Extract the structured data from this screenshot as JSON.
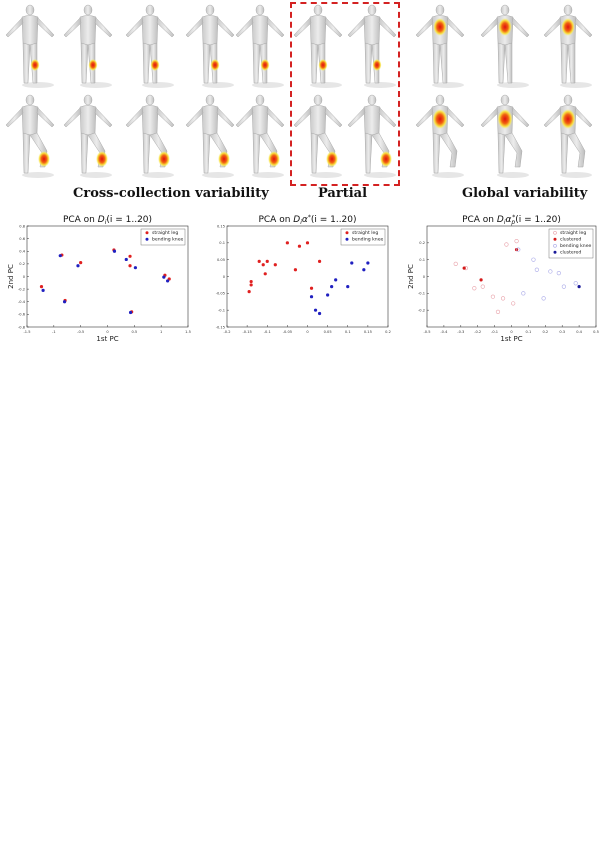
{
  "figure": {
    "group_titles": {
      "cross": "Cross-collection variability",
      "partial": "Partial",
      "global": "Global variability"
    }
  },
  "chart_data": [
    {
      "type": "scatter",
      "title": "PCA on D_i(i = 1..20)",
      "title_parts": {
        "prefix": "PCA on ",
        "math": "D",
        "sub": "i",
        "suffix": "(i = 1..20)"
      },
      "xlabel": "1st PC",
      "ylabel": "2nd PC",
      "xlim": [
        -1.5,
        1.5
      ],
      "ylim": [
        -0.8,
        0.8
      ],
      "xticks": [
        -1.5,
        -1,
        -0.5,
        0,
        0.5,
        1,
        1.5
      ],
      "yticks": [
        -0.8,
        -0.6,
        -0.4,
        -0.2,
        0,
        0.2,
        0.4,
        0.6,
        0.8
      ],
      "xtick_labels": [
        "-1.5",
        "-1",
        "-0.5",
        "0",
        "0.5",
        "1",
        "1.5"
      ],
      "ytick_labels": [
        "-0.8",
        "-0.6",
        "-0.4",
        "-0.2",
        "0",
        "0.2",
        "0.4",
        "0.6",
        "0.8"
      ],
      "legend": "top-right",
      "series": [
        {
          "name": "straight leg",
          "color": "#e02020",
          "marker": "filled",
          "points": [
            [
              -1.23,
              -0.16
            ],
            [
              -0.85,
              0.34
            ],
            [
              -0.79,
              -0.38
            ],
            [
              -0.5,
              0.22
            ],
            [
              0.12,
              0.42
            ],
            [
              0.42,
              0.32
            ],
            [
              0.42,
              0.17
            ],
            [
              0.45,
              -0.56
            ],
            [
              1.07,
              0.02
            ],
            [
              1.15,
              -0.04
            ]
          ]
        },
        {
          "name": "bending knee",
          "color": "#2020c0",
          "marker": "filled",
          "points": [
            [
              -1.2,
              -0.22
            ],
            [
              -0.88,
              0.33
            ],
            [
              -0.8,
              -0.4
            ],
            [
              -0.55,
              0.17
            ],
            [
              0.13,
              0.4
            ],
            [
              0.35,
              0.27
            ],
            [
              0.52,
              0.14
            ],
            [
              0.43,
              -0.57
            ],
            [
              1.05,
              -0.01
            ],
            [
              1.12,
              -0.07
            ]
          ]
        }
      ]
    },
    {
      "type": "scatter",
      "title": "PCA on D_i α*(i = 1..20)",
      "title_parts": {
        "prefix": "PCA on ",
        "math": "D",
        "sub": "i",
        "greek": "α",
        "sup": "*",
        "suffix": "(i = 1..20)"
      },
      "xlabel": "",
      "ylabel": "",
      "xlim": [
        -0.2,
        0.2
      ],
      "ylim": [
        -0.15,
        0.15
      ],
      "xticks": [
        -0.2,
        -0.15,
        -0.1,
        -0.05,
        0,
        0.05,
        0.1,
        0.15,
        0.2
      ],
      "yticks": [
        -0.15,
        -0.1,
        -0.05,
        0,
        0.05,
        0.1,
        0.15
      ],
      "xtick_labels": [
        "-0.2",
        "-0.15",
        "-0.1",
        "-0.05",
        "0",
        "0.05",
        "0.1",
        "0.15",
        "0.2"
      ],
      "ytick_labels": [
        "-0.15",
        "-0.1",
        "-0.05",
        "0",
        "0.05",
        "0.1",
        "0.15"
      ],
      "legend": "top-right",
      "series": [
        {
          "name": "straight leg",
          "color": "#e02020",
          "marker": "filled",
          "points": [
            [
              -0.145,
              -0.045
            ],
            [
              -0.14,
              -0.015
            ],
            [
              -0.14,
              -0.025
            ],
            [
              -0.12,
              0.045
            ],
            [
              -0.11,
              0.035
            ],
            [
              -0.105,
              0.008
            ],
            [
              -0.1,
              0.045
            ],
            [
              -0.08,
              0.035
            ],
            [
              -0.05,
              0.1
            ],
            [
              -0.03,
              0.02
            ],
            [
              -0.02,
              0.09
            ],
            [
              0.0,
              0.1
            ],
            [
              0.01,
              -0.035
            ],
            [
              0.03,
              0.045
            ]
          ]
        },
        {
          "name": "bending knee",
          "color": "#2020c0",
          "marker": "filled",
          "points": [
            [
              0.01,
              -0.06
            ],
            [
              0.02,
              -0.1
            ],
            [
              0.03,
              -0.11
            ],
            [
              0.05,
              -0.055
            ],
            [
              0.06,
              -0.03
            ],
            [
              0.07,
              -0.01
            ],
            [
              0.1,
              -0.03
            ],
            [
              0.11,
              0.04
            ],
            [
              0.14,
              0.02
            ],
            [
              0.15,
              0.04
            ]
          ]
        }
      ]
    },
    {
      "type": "scatter",
      "title": "PCA on D_i α_p*(i = 1..20)",
      "title_parts": {
        "prefix": "PCA on ",
        "math": "D",
        "sub": "i",
        "greek": "α",
        "greek_sub": "p",
        "sup": "*",
        "suffix": "(i = 1..20)"
      },
      "xlabel": "1st PC",
      "ylabel": "2nd PC",
      "xlim": [
        -0.5,
        0.5
      ],
      "ylim": [
        -0.3,
        0.3
      ],
      "xticks": [
        -0.5,
        -0.4,
        -0.3,
        -0.2,
        -0.1,
        0,
        0.1,
        0.2,
        0.3,
        0.4,
        0.5
      ],
      "yticks": [
        -0.2,
        -0.1,
        0,
        0.1,
        0.2
      ],
      "xtick_labels": [
        "-0.5",
        "-0.4",
        "-0.3",
        "-0.2",
        "-0.1",
        "0",
        "0.1",
        "0.2",
        "0.3",
        "0.4",
        "0.5"
      ],
      "ytick_labels": [
        "-0.2",
        "-0.1",
        "0",
        "0.1",
        "0.2"
      ],
      "legend": "top-right",
      "series": [
        {
          "name": "straight leg",
          "color": "#e8a0a8",
          "marker": "open",
          "points": [
            [
              -0.33,
              0.075
            ],
            [
              -0.27,
              0.05
            ],
            [
              -0.22,
              -0.07
            ],
            [
              -0.17,
              -0.06
            ],
            [
              -0.11,
              -0.12
            ],
            [
              -0.08,
              -0.21
            ],
            [
              -0.05,
              -0.13
            ],
            [
              -0.03,
              0.19
            ],
            [
              0.01,
              -0.16
            ],
            [
              0.03,
              0.21
            ]
          ]
        },
        {
          "name": "clustered",
          "color": "#d41a1a",
          "marker": "filled",
          "points": [
            [
              -0.28,
              0.05
            ],
            [
              -0.18,
              -0.02
            ],
            [
              0.03,
              0.16
            ]
          ]
        },
        {
          "name": "bending knee",
          "color": "#a8a8e8",
          "marker": "open",
          "points": [
            [
              0.04,
              0.16
            ],
            [
              0.07,
              -0.1
            ],
            [
              0.13,
              0.1
            ],
            [
              0.15,
              0.04
            ],
            [
              0.19,
              -0.13
            ],
            [
              0.23,
              0.03
            ],
            [
              0.28,
              0.02
            ],
            [
              0.31,
              -0.06
            ],
            [
              0.38,
              -0.04
            ]
          ]
        },
        {
          "name": "clustered",
          "color": "#1a1a9a",
          "marker": "filled",
          "points": [
            [
              0.4,
              -0.06
            ]
          ]
        }
      ]
    }
  ]
}
